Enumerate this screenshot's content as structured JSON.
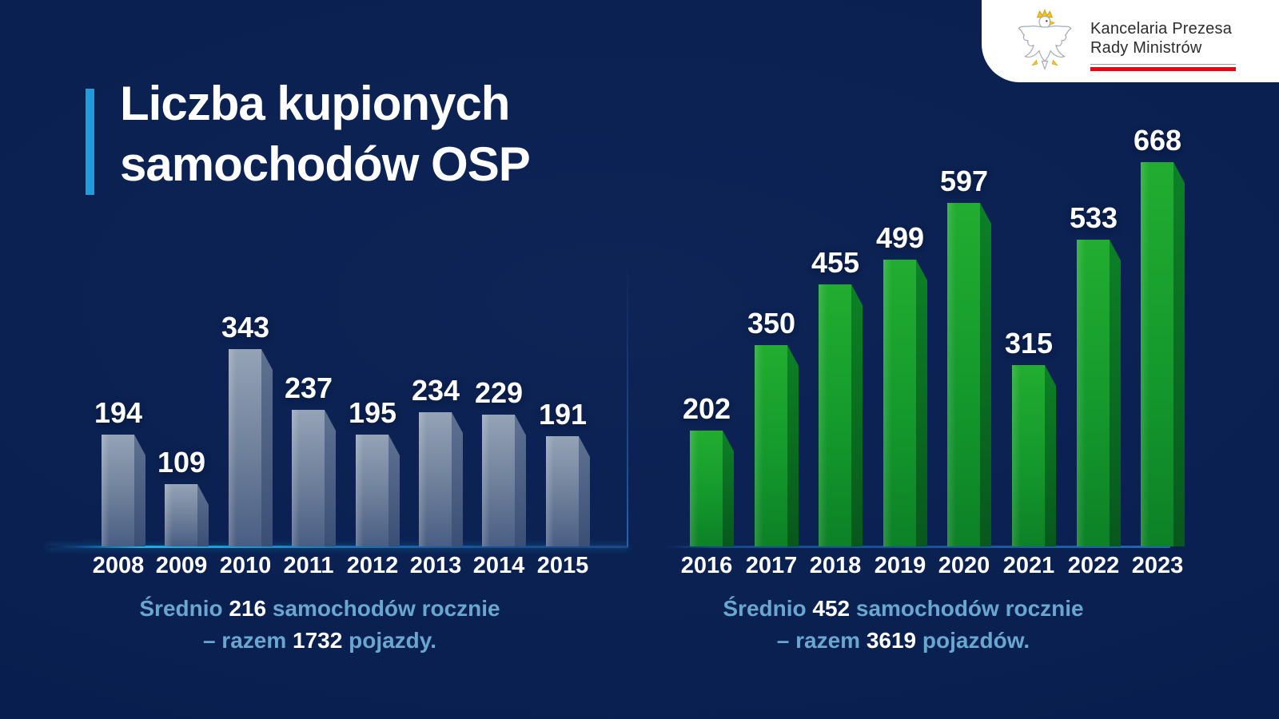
{
  "title": {
    "line1": "Liczba kupionych",
    "line2": "samochodów OSP"
  },
  "logo": {
    "line1": "Kancelaria Prezesa",
    "line2": "Rady Ministrów"
  },
  "colors": {
    "background": "#0a2050",
    "accent_bar": "#1f9cd9",
    "caption_blue": "#69a7d1",
    "gray_bar_front": "#71829c",
    "gray_bar_side": "#4a5c7e",
    "green_bar_front": "#14992c",
    "green_bar_side": "#0a6e21",
    "axis_cyan": "#17b2e6",
    "axis_blue": "#1b4d92",
    "logo_red_line": "#e30613"
  },
  "chart_data": [
    {
      "type": "bar",
      "title": "Liczba kupionych samochodów OSP (2008–2015)",
      "categories": [
        "2008",
        "2009",
        "2010",
        "2011",
        "2012",
        "2013",
        "2014",
        "2015"
      ],
      "values": [
        194,
        109,
        343,
        237,
        195,
        234,
        229,
        191
      ],
      "xlabel": "",
      "ylabel": "",
      "ylim": [
        0,
        700
      ],
      "grid": false,
      "legend": false,
      "bar_style": "gray-blue 3d",
      "summary": {
        "prefix": "Średnio",
        "average": "216",
        "middle": "samochodów rocznie",
        "line2_prefix": "– razem",
        "total": "1732",
        "suffix": "pojazdy."
      }
    },
    {
      "type": "bar",
      "title": "Liczba kupionych samochodów OSP (2016–2023)",
      "categories": [
        "2016",
        "2017",
        "2018",
        "2019",
        "2020",
        "2021",
        "2022",
        "2023"
      ],
      "values": [
        202,
        350,
        455,
        499,
        597,
        315,
        533,
        668
      ],
      "xlabel": "",
      "ylabel": "",
      "ylim": [
        0,
        700
      ],
      "grid": false,
      "legend": false,
      "bar_style": "green 3d",
      "summary": {
        "prefix": "Średnio",
        "average": "452",
        "middle": "samochodów rocznie",
        "line2_prefix": "– razem",
        "total": "3619",
        "suffix": "pojazdów."
      }
    }
  ]
}
